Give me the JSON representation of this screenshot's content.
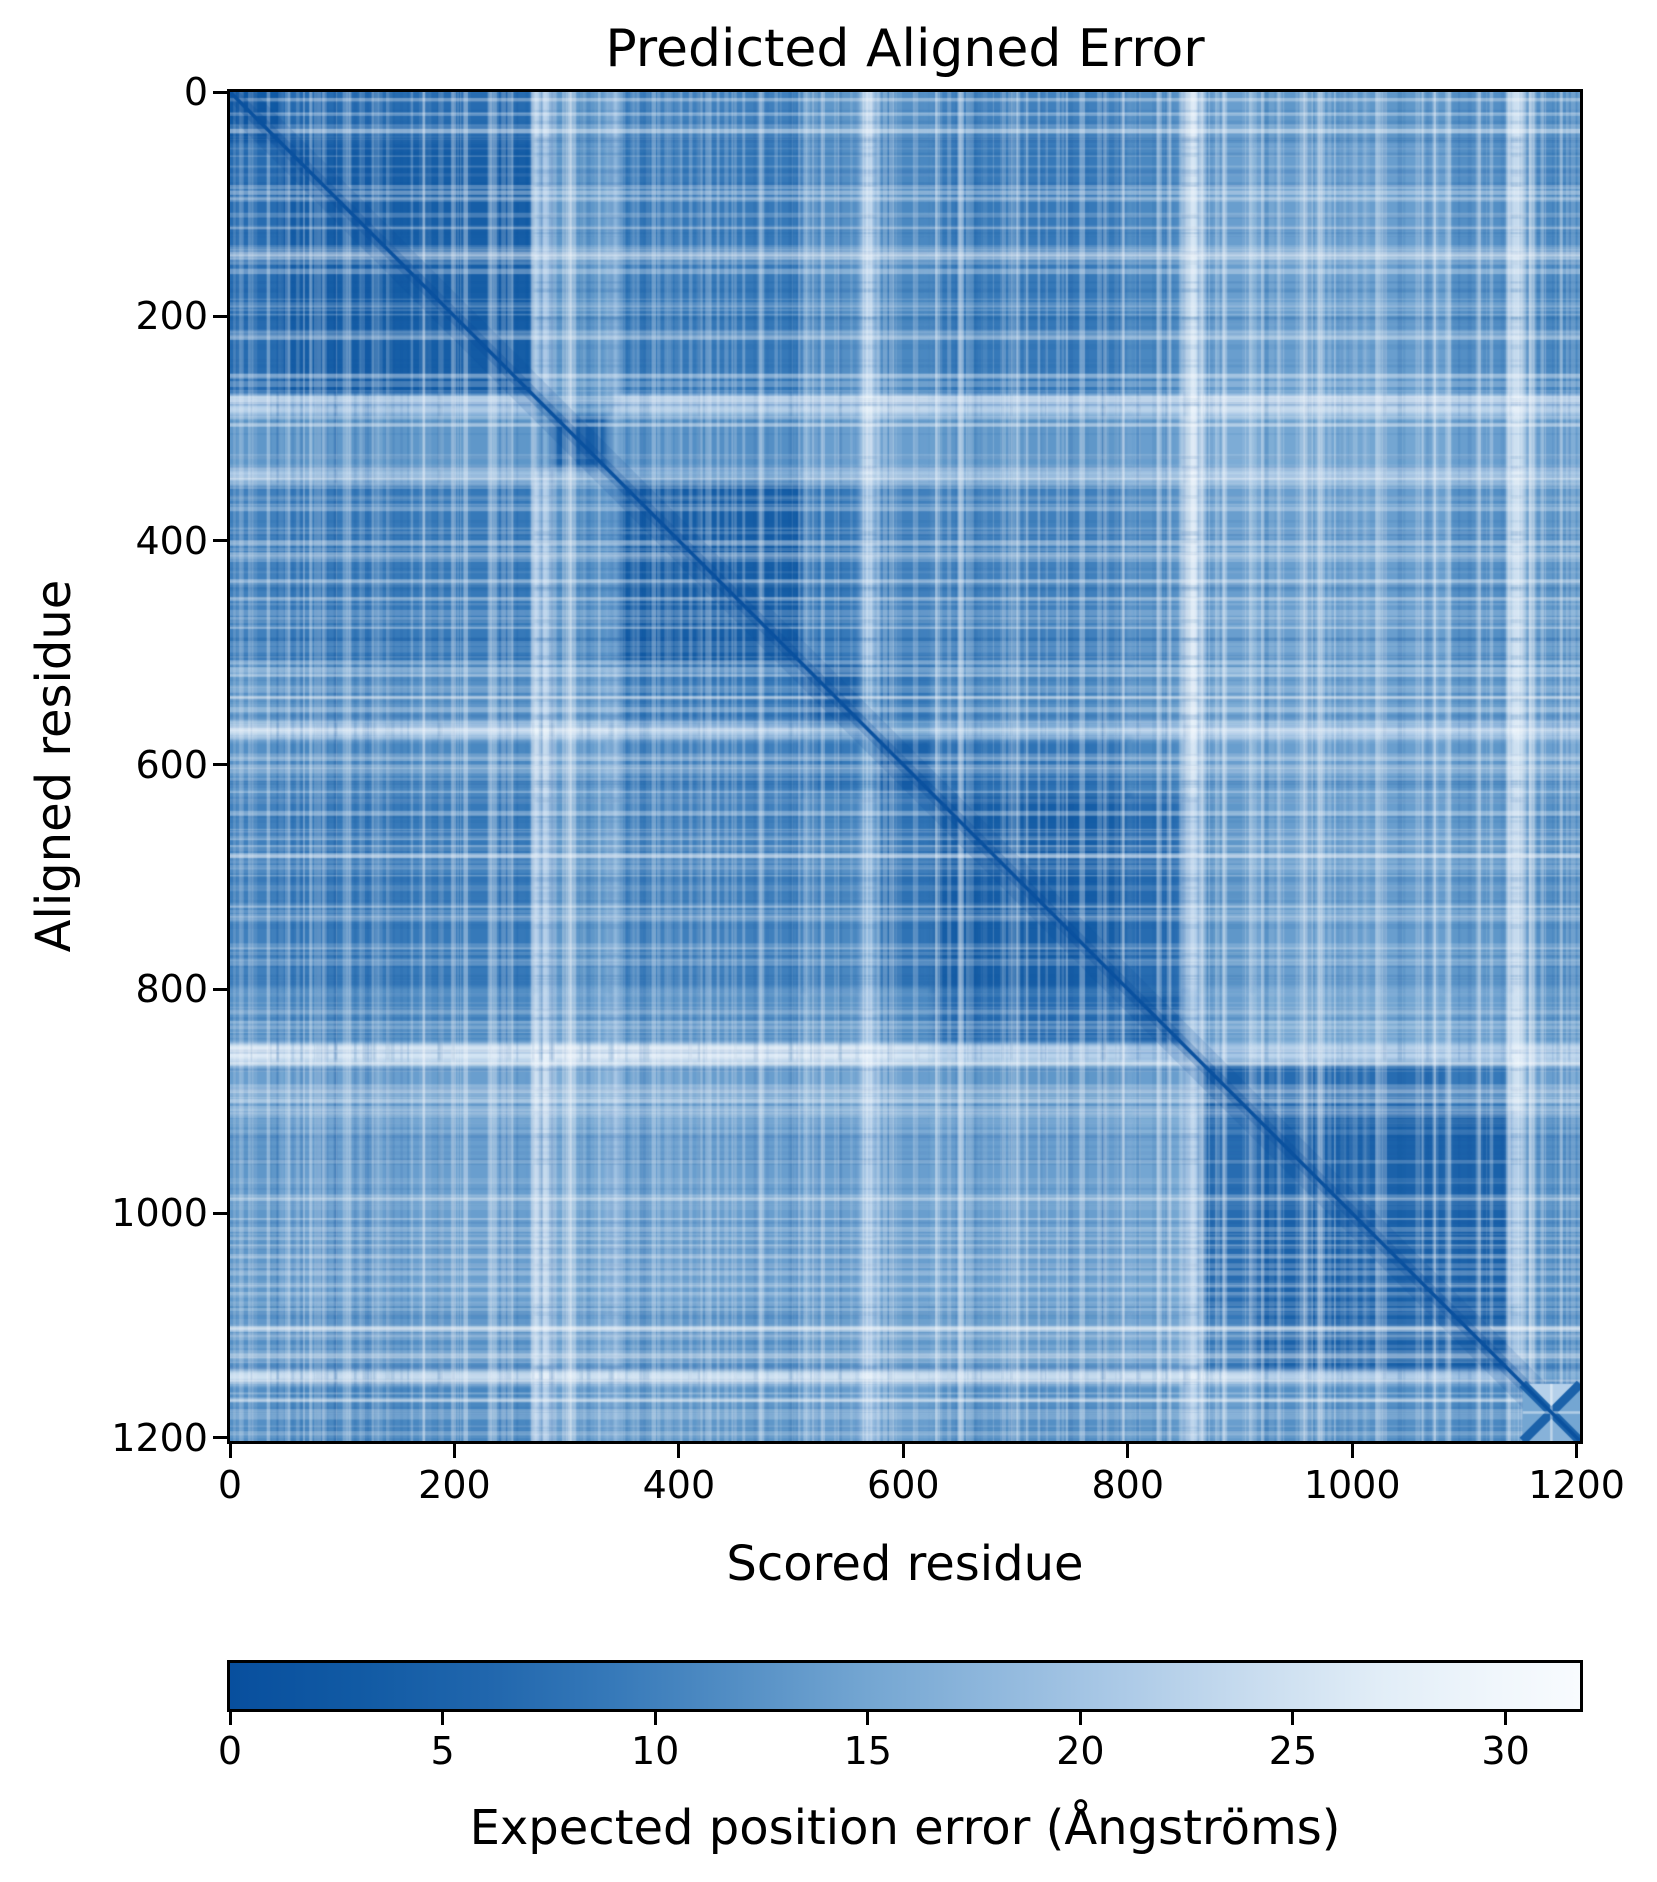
{
  "title": "Predicted Aligned Error",
  "x_axis": {
    "label": "Scored residue",
    "ticks": [
      0,
      200,
      400,
      600,
      800,
      1000,
      1200
    ]
  },
  "y_axis": {
    "label": "Aligned residue",
    "ticks": [
      0,
      200,
      400,
      600,
      800,
      1000,
      1200
    ]
  },
  "colorbar": {
    "label": "Expected position error (Ångströms)",
    "ticks": [
      0,
      5,
      10,
      15,
      20,
      25,
      30
    ],
    "vmin": 0,
    "vmax": 31.75
  },
  "chart_data": {
    "type": "heatmap",
    "title": "Predicted Aligned Error",
    "xlabel": "Scored residue",
    "ylabel": "Aligned residue",
    "colorbar_label": "Expected position error (Ångströms)",
    "n_residues": 1203,
    "xlim": [
      0,
      1203
    ],
    "ylim": [
      1203,
      0
    ],
    "grid": false,
    "value_units": "Angstroms",
    "vmin": 0,
    "vmax": 31.75,
    "colormap": {
      "name": "Blues_r",
      "stops": [
        [
          0,
          "#084f9e"
        ],
        [
          3,
          "#115aa4"
        ],
        [
          6,
          "#2066ad"
        ],
        [
          9,
          "#3679b9"
        ],
        [
          12,
          "#548fc5"
        ],
        [
          15,
          "#74a6d2"
        ],
        [
          18,
          "#90b8dd"
        ],
        [
          21,
          "#accae7"
        ],
        [
          24,
          "#c8dcef"
        ],
        [
          27,
          "#e1edf7"
        ],
        [
          30,
          "#f1f7fc"
        ],
        [
          31.75,
          "#f8fbfe"
        ]
      ]
    },
    "description": "Symmetric PAE matrix with low-error (dark blue) domain blocks along the diagonal separated by high-error (white) linker bands; bottom-right corner block shows an X-shaped pattern.",
    "bands": [
      {
        "name": "n-terminal-tail",
        "start": 0,
        "end": 45
      },
      {
        "name": "domain-1",
        "start": 45,
        "end": 270
      },
      {
        "name": "linker-1",
        "start": 270,
        "end": 288
      },
      {
        "name": "domain-2",
        "start": 288,
        "end": 337
      },
      {
        "name": "linker-2",
        "start": 337,
        "end": 348
      },
      {
        "name": "domain-3",
        "start": 348,
        "end": 510
      },
      {
        "name": "domain-4",
        "start": 510,
        "end": 562
      },
      {
        "name": "linker-3",
        "start": 562,
        "end": 576
      },
      {
        "name": "domain-5",
        "start": 576,
        "end": 626
      },
      {
        "name": "domain-6",
        "start": 626,
        "end": 800
      },
      {
        "name": "domain-7",
        "start": 800,
        "end": 848
      },
      {
        "name": "linker-4",
        "start": 848,
        "end": 865
      },
      {
        "name": "domain-8",
        "start": 865,
        "end": 910
      },
      {
        "name": "domain-9",
        "start": 910,
        "end": 1085
      },
      {
        "name": "domain-10",
        "start": 1085,
        "end": 1140
      },
      {
        "name": "linker-5",
        "start": 1140,
        "end": 1152
      },
      {
        "name": "domain-11-x-block",
        "start": 1152,
        "end": 1203
      }
    ],
    "pae_matrix_by_band": [
      [
        3,
        7,
        22,
        13,
        20,
        10,
        13,
        23,
        12,
        10,
        12,
        26,
        14,
        13,
        12,
        25,
        12
      ],
      [
        7,
        4,
        20,
        13,
        18,
        9,
        12,
        22,
        11,
        9,
        11,
        25,
        14,
        14,
        12,
        24,
        11
      ],
      [
        22,
        20,
        16,
        15,
        22,
        21,
        22,
        27,
        23,
        21,
        22,
        28,
        24,
        23,
        22,
        28,
        21
      ],
      [
        13,
        13,
        15,
        5,
        17,
        12,
        14,
        23,
        14,
        13,
        14,
        26,
        16,
        15,
        14,
        25,
        14
      ],
      [
        20,
        18,
        22,
        17,
        18,
        14,
        18,
        25,
        19,
        18,
        19,
        28,
        21,
        20,
        19,
        27,
        18
      ],
      [
        10,
        9,
        21,
        12,
        14,
        4,
        9,
        20,
        10,
        10,
        12,
        26,
        14,
        14,
        12,
        25,
        13
      ],
      [
        13,
        12,
        22,
        14,
        18,
        9,
        5,
        17,
        9,
        11,
        13,
        26,
        15,
        14,
        13,
        25,
        14
      ],
      [
        23,
        22,
        27,
        23,
        25,
        20,
        17,
        20,
        15,
        18,
        20,
        28,
        22,
        21,
        20,
        28,
        20
      ],
      [
        12,
        11,
        23,
        14,
        19,
        10,
        9,
        15,
        5,
        8,
        11,
        25,
        14,
        14,
        13,
        25,
        14
      ],
      [
        10,
        9,
        21,
        13,
        18,
        10,
        11,
        18,
        8,
        4,
        7,
        22,
        13,
        14,
        13,
        24,
        12
      ],
      [
        12,
        11,
        22,
        14,
        19,
        12,
        13,
        20,
        11,
        7,
        5,
        20,
        14,
        15,
        14,
        25,
        13
      ],
      [
        26,
        25,
        28,
        26,
        28,
        26,
        26,
        28,
        25,
        22,
        20,
        24,
        20,
        22,
        21,
        28,
        22
      ],
      [
        14,
        14,
        24,
        16,
        21,
        14,
        15,
        22,
        14,
        13,
        14,
        20,
        5,
        7,
        9,
        25,
        14
      ],
      [
        13,
        14,
        23,
        15,
        20,
        14,
        14,
        21,
        14,
        14,
        15,
        22,
        7,
        5,
        5,
        22,
        12
      ],
      [
        12,
        12,
        22,
        14,
        19,
        12,
        13,
        20,
        13,
        13,
        14,
        21,
        9,
        5,
        4,
        20,
        11
      ],
      [
        25,
        24,
        28,
        25,
        27,
        25,
        25,
        28,
        25,
        24,
        25,
        28,
        25,
        22,
        20,
        22,
        15
      ],
      [
        12,
        11,
        21,
        14,
        18,
        13,
        14,
        20,
        14,
        12,
        13,
        22,
        14,
        12,
        11,
        15,
        6
      ]
    ],
    "diagonal_value": 0.5
  }
}
